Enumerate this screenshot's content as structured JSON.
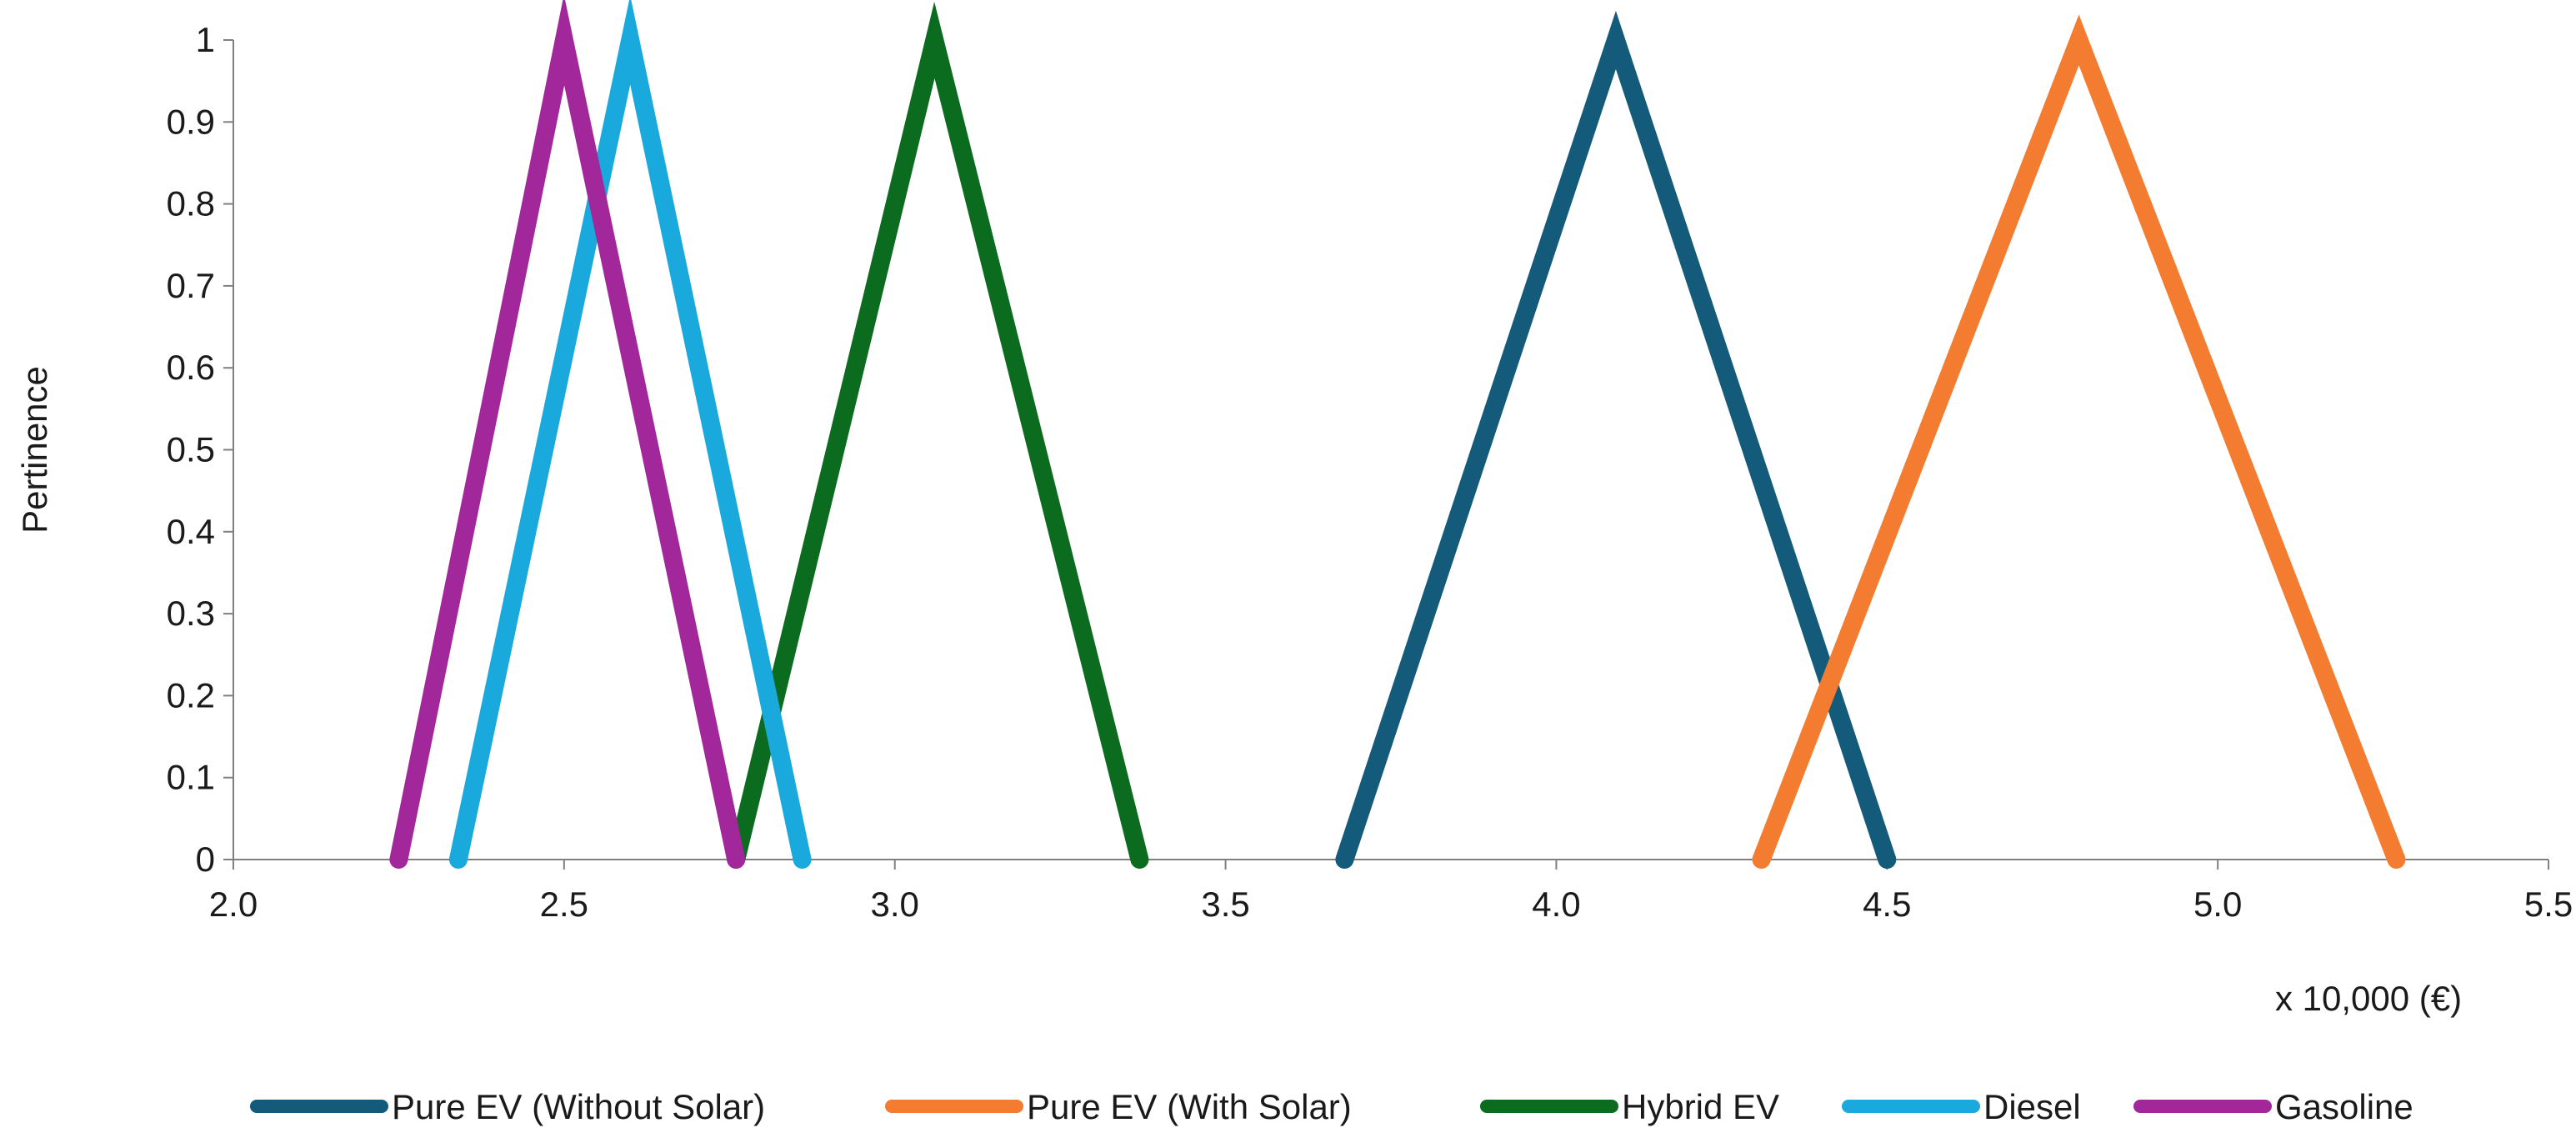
{
  "chart_data": {
    "type": "line",
    "title": "",
    "xlabel": "x 10,000 (€)",
    "ylabel": "Pertinence",
    "xlim": [
      2.0,
      5.5
    ],
    "ylim": [
      0,
      1
    ],
    "x_ticks": [
      "2.0",
      "2.5",
      "3.0",
      "3.5",
      "4.0",
      "4.5",
      "5.0",
      "5.5"
    ],
    "y_ticks": [
      "0",
      "0.1",
      "0.2",
      "0.3",
      "0.4",
      "0.5",
      "0.6",
      "0.7",
      "0.8",
      "0.9",
      "1"
    ],
    "grid": false,
    "legend_position": "bottom",
    "series": [
      {
        "name": "Pure EV  (Without Solar)",
        "color": "#145a7a",
        "points": [
          [
            3.68,
            0
          ],
          [
            4.09,
            1
          ],
          [
            4.5,
            0
          ]
        ]
      },
      {
        "name": "Pure EV  (With Solar)",
        "color": "#f47c30",
        "points": [
          [
            4.31,
            0
          ],
          [
            4.79,
            1
          ],
          [
            5.27,
            0
          ]
        ]
      },
      {
        "name": "Hybrid EV",
        "color": "#0b6b1e",
        "points": [
          [
            2.76,
            0
          ],
          [
            3.06,
            1
          ],
          [
            3.37,
            0
          ]
        ]
      },
      {
        "name": "Diesel",
        "color": "#1aa9dd",
        "points": [
          [
            2.34,
            0
          ],
          [
            2.6,
            1
          ],
          [
            2.86,
            0
          ]
        ]
      },
      {
        "name": "Gasoline",
        "color": "#a2279b",
        "points": [
          [
            2.25,
            0
          ],
          [
            2.5,
            1
          ],
          [
            2.76,
            0
          ]
        ]
      }
    ]
  }
}
